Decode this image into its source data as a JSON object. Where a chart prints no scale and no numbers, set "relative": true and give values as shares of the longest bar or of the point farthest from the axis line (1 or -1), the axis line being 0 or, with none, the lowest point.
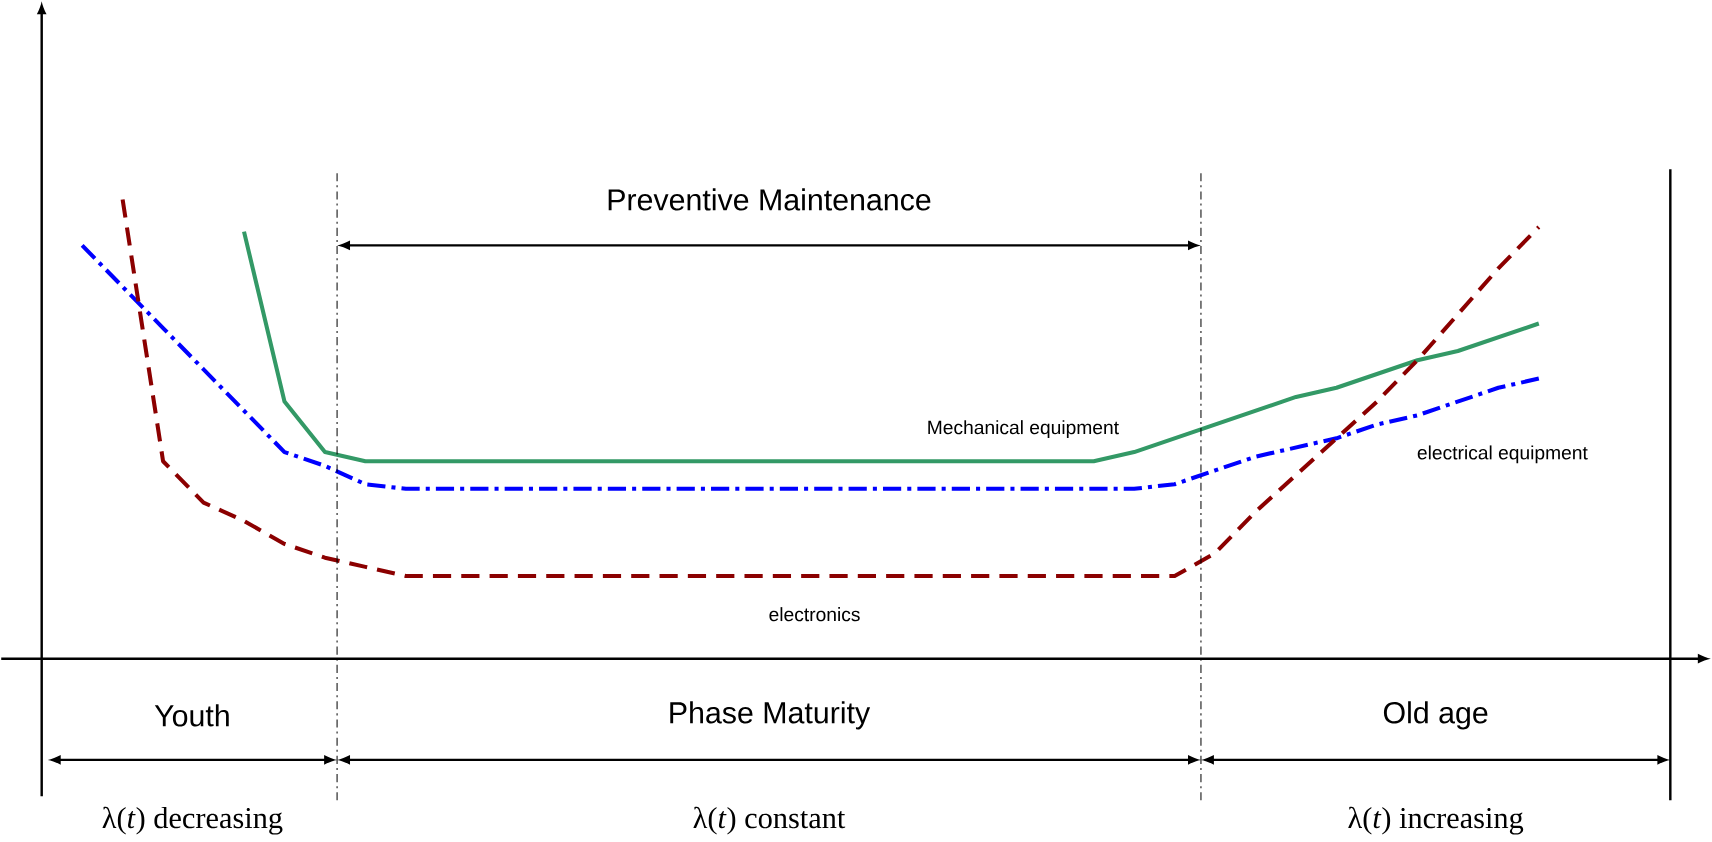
{
  "chart_data": {
    "type": "line",
    "relative": true,
    "categories": [
      null,
      null,
      null,
      null,
      null,
      null,
      null,
      null,
      null,
      null,
      null,
      null,
      null,
      null,
      null,
      null,
      null,
      null,
      null,
      null,
      null,
      null,
      null,
      null,
      null,
      null,
      null,
      null,
      null,
      null,
      null,
      null,
      null,
      null,
      null,
      null,
      null,
      null,
      null,
      null,
      null,
      null
    ],
    "series": [
      {
        "name": "Mechanical equipment",
        "color": "#339966",
        "line_style": "solid",
        "values": [
          null,
          null,
          null,
          null,
          null,
          0.93,
          0.56,
          0.45,
          0.43,
          0.43,
          0.43,
          0.43,
          0.43,
          0.43,
          0.43,
          0.43,
          0.43,
          0.43,
          0.43,
          0.43,
          0.43,
          0.43,
          0.43,
          0.43,
          0.43,
          0.43,
          0.43,
          0.45,
          0.48,
          0.51,
          0.54,
          0.57,
          0.59,
          0.62,
          0.65,
          0.67,
          0.7,
          0.73,
          null,
          null,
          null,
          null
        ]
      },
      {
        "name": "electrical equipment",
        "color": "#0000ff",
        "line_style": "dashdot",
        "values": [
          null,
          0.9,
          0.81,
          0.72,
          0.63,
          0.54,
          0.45,
          0.42,
          0.38,
          0.37,
          0.37,
          0.37,
          0.37,
          0.37,
          0.37,
          0.37,
          0.37,
          0.37,
          0.37,
          0.37,
          0.37,
          0.37,
          0.37,
          0.37,
          0.37,
          0.37,
          0.37,
          0.37,
          0.38,
          0.41,
          0.44,
          0.46,
          0.48,
          0.51,
          0.53,
          0.56,
          0.59,
          0.61,
          null,
          null,
          null,
          null
        ]
      },
      {
        "name": "electronics",
        "color": "#8b0000",
        "line_style": "dashed",
        "values": [
          null,
          null,
          1.0,
          0.43,
          0.34,
          0.3,
          0.25,
          0.22,
          0.2,
          0.18,
          0.18,
          0.18,
          0.18,
          0.18,
          0.18,
          0.18,
          0.18,
          0.18,
          0.18,
          0.18,
          0.18,
          0.18,
          0.18,
          0.18,
          0.18,
          0.18,
          0.18,
          0.18,
          0.18,
          0.23,
          0.32,
          0.4,
          0.48,
          0.56,
          0.65,
          0.75,
          0.85,
          0.94,
          null,
          null,
          null,
          null
        ]
      }
    ],
    "annotations": [
      "Preventive Maintenance",
      "Youth",
      "Phase Maturity",
      "Old age",
      "λ(*t*) decreasing",
      "λ(*t*) constant",
      "λ(*t*) increasing"
    ]
  }
}
